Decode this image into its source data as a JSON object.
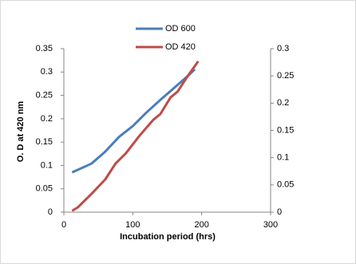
{
  "chart_data": {
    "type": "line",
    "x_label": "Incubation period (hrs)",
    "y_label": "O. D at 420 nm",
    "xlim": [
      0,
      300
    ],
    "xticks": [
      0,
      100,
      200,
      300
    ],
    "ylim": [
      0,
      0.35
    ],
    "yticks": [
      0,
      0.05,
      0.1,
      0.15,
      0.2,
      0.25,
      0.3,
      0.35
    ],
    "y2lim": [
      0,
      0.3
    ],
    "y2ticks": [
      0,
      0.05,
      0.1,
      0.15,
      0.2,
      0.25,
      0.3
    ],
    "series": [
      {
        "name": "OD 600",
        "color": "#4a7ebb",
        "axis": "y2",
        "x": [
          12,
          40,
          60,
          80,
          100,
          120,
          140,
          160,
          180,
          190
        ],
        "values": [
          0.073,
          0.089,
          0.111,
          0.138,
          0.158,
          0.183,
          0.206,
          0.228,
          0.25,
          0.262
        ]
      },
      {
        "name": "OD 420",
        "color": "#be4b48",
        "x": [
          12,
          20,
          40,
          60,
          75,
          90,
          110,
          130,
          140,
          155,
          165,
          180,
          195
        ],
        "values": [
          0.003,
          0.01,
          0.039,
          0.07,
          0.104,
          0.126,
          0.164,
          0.198,
          0.21,
          0.246,
          0.258,
          0.292,
          0.323
        ]
      }
    ]
  }
}
